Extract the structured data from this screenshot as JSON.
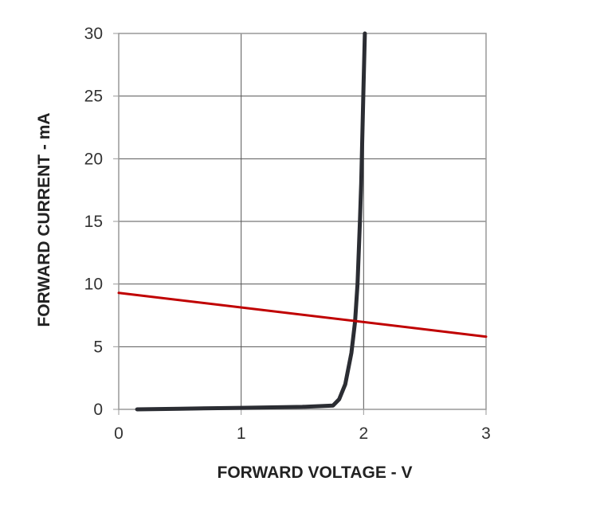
{
  "chart_data": {
    "type": "line",
    "title": "",
    "xlabel": "FORWARD VOLTAGE - V",
    "ylabel": "FORWARD CURRENT - mA",
    "xlim": [
      0,
      3
    ],
    "ylim": [
      0,
      30
    ],
    "x_ticks": [
      "0",
      "1",
      "2",
      "3"
    ],
    "y_ticks": [
      "0",
      "5",
      "10",
      "15",
      "20",
      "25",
      "30"
    ],
    "grid": true,
    "legend": "none",
    "series": [
      {
        "color": "#2b2d33",
        "x": [
          0.15,
          0.5,
          1.0,
          1.5,
          1.75,
          1.8,
          1.85,
          1.9,
          1.93,
          1.95,
          1.97,
          1.98,
          1.99,
          2.0,
          2.01
        ],
        "y": [
          0.0,
          0.05,
          0.12,
          0.2,
          0.3,
          0.8,
          2.0,
          4.5,
          7.0,
          10.0,
          15.0,
          18.0,
          22.0,
          26.0,
          30.0
        ]
      },
      {
        "color": "#c00000",
        "x": [
          0,
          3
        ],
        "y": [
          9.3,
          5.8
        ]
      }
    ]
  }
}
